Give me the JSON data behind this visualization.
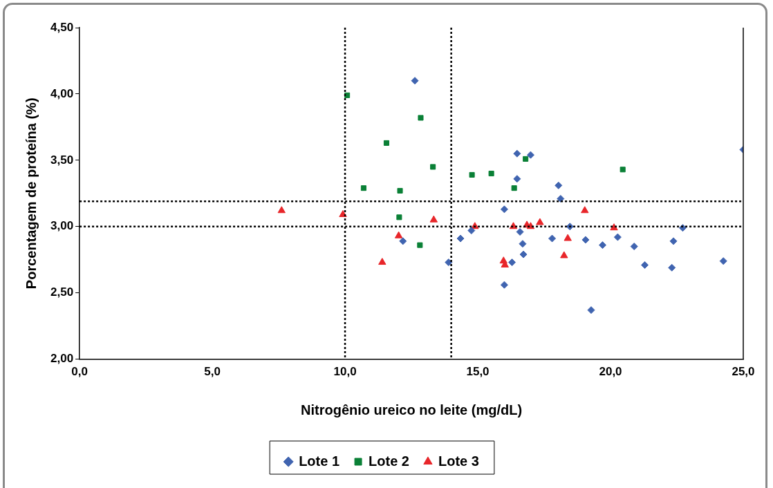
{
  "chart_data": {
    "type": "scatter",
    "xlabel": "Nitrogênio ureico no leite (mg/dL)",
    "ylabel": "Porcentagem de proteína (%)",
    "xlim": [
      0,
      25
    ],
    "xticks": [
      {
        "value": 0,
        "label": "0,0"
      },
      {
        "value": 5,
        "label": "5,0"
      },
      {
        "value": 10,
        "label": "10,0"
      },
      {
        "value": 15,
        "label": "15,0"
      },
      {
        "value": 20,
        "label": "20,0"
      },
      {
        "value": 25,
        "label": "25,0"
      }
    ],
    "ylim": [
      2,
      4.5
    ],
    "yticks": [
      {
        "value": 2,
        "label": "2,00"
      },
      {
        "value": 2.5,
        "label": "2,50"
      },
      {
        "value": 3,
        "label": "3,00"
      },
      {
        "value": 3.5,
        "label": "3,50"
      },
      {
        "value": 4,
        "label": "4,00"
      },
      {
        "value": 4.5,
        "label": "4,50"
      }
    ],
    "grid": false,
    "legend": "bottom",
    "series": [
      {
        "name": "Lote 1",
        "color": "#4064b0",
        "marker": "diamond",
        "x": [
          12.63,
          12.18,
          13.9,
          14.35,
          14.76,
          16.0,
          16.0,
          16.29,
          16.48,
          16.48,
          16.59,
          16.69,
          16.72,
          16.99,
          17.8,
          18.04,
          18.12,
          18.47,
          19.06,
          19.27,
          19.7,
          20.27,
          20.89,
          21.29,
          22.31,
          22.37,
          22.72,
          24.25,
          25.0
        ],
        "values": [
          4.1,
          2.89,
          2.73,
          2.91,
          2.97,
          3.13,
          2.56,
          2.73,
          3.55,
          3.36,
          2.96,
          2.87,
          2.79,
          3.54,
          2.91,
          3.31,
          3.21,
          3.0,
          2.9,
          2.37,
          2.86,
          2.92,
          2.85,
          2.71,
          2.69,
          2.89,
          2.99,
          2.74,
          3.58
        ]
      },
      {
        "name": "Lote 2",
        "color": "#0a8036",
        "marker": "square",
        "x": [
          10.08,
          12.85,
          11.56,
          13.31,
          10.7,
          12.07,
          12.04,
          12.82,
          14.78,
          15.51,
          16.37,
          16.8,
          20.46
        ],
        "values": [
          3.99,
          3.82,
          3.63,
          3.45,
          3.29,
          3.27,
          3.07,
          2.86,
          3.39,
          3.4,
          3.29,
          3.51,
          3.43
        ]
      },
      {
        "name": "Lote 3",
        "color": "#e8262a",
        "marker": "triangle",
        "x": [
          7.61,
          9.92,
          12.02,
          11.4,
          13.34,
          14.89,
          15.97,
          16.02,
          16.34,
          16.85,
          16.99,
          17.34,
          18.25,
          18.39,
          19.03,
          20.13
        ],
        "values": [
          3.12,
          3.09,
          2.93,
          2.73,
          3.05,
          3.0,
          2.74,
          2.71,
          3.0,
          3.01,
          3.0,
          3.03,
          2.78,
          2.91,
          3.12,
          2.99
        ]
      }
    ],
    "ref_lines": [
      {
        "axis": "x",
        "value": 10,
        "color": "#000000",
        "line_style": "dotted"
      },
      {
        "axis": "x",
        "value": 14,
        "color": "#000000",
        "line_style": "dotted"
      },
      {
        "axis": "y",
        "value": 3.0,
        "color": "#000000",
        "line_style": "dotted"
      },
      {
        "axis": "y",
        "value": 3.19,
        "color": "#000000",
        "line_style": "dotted"
      }
    ]
  }
}
